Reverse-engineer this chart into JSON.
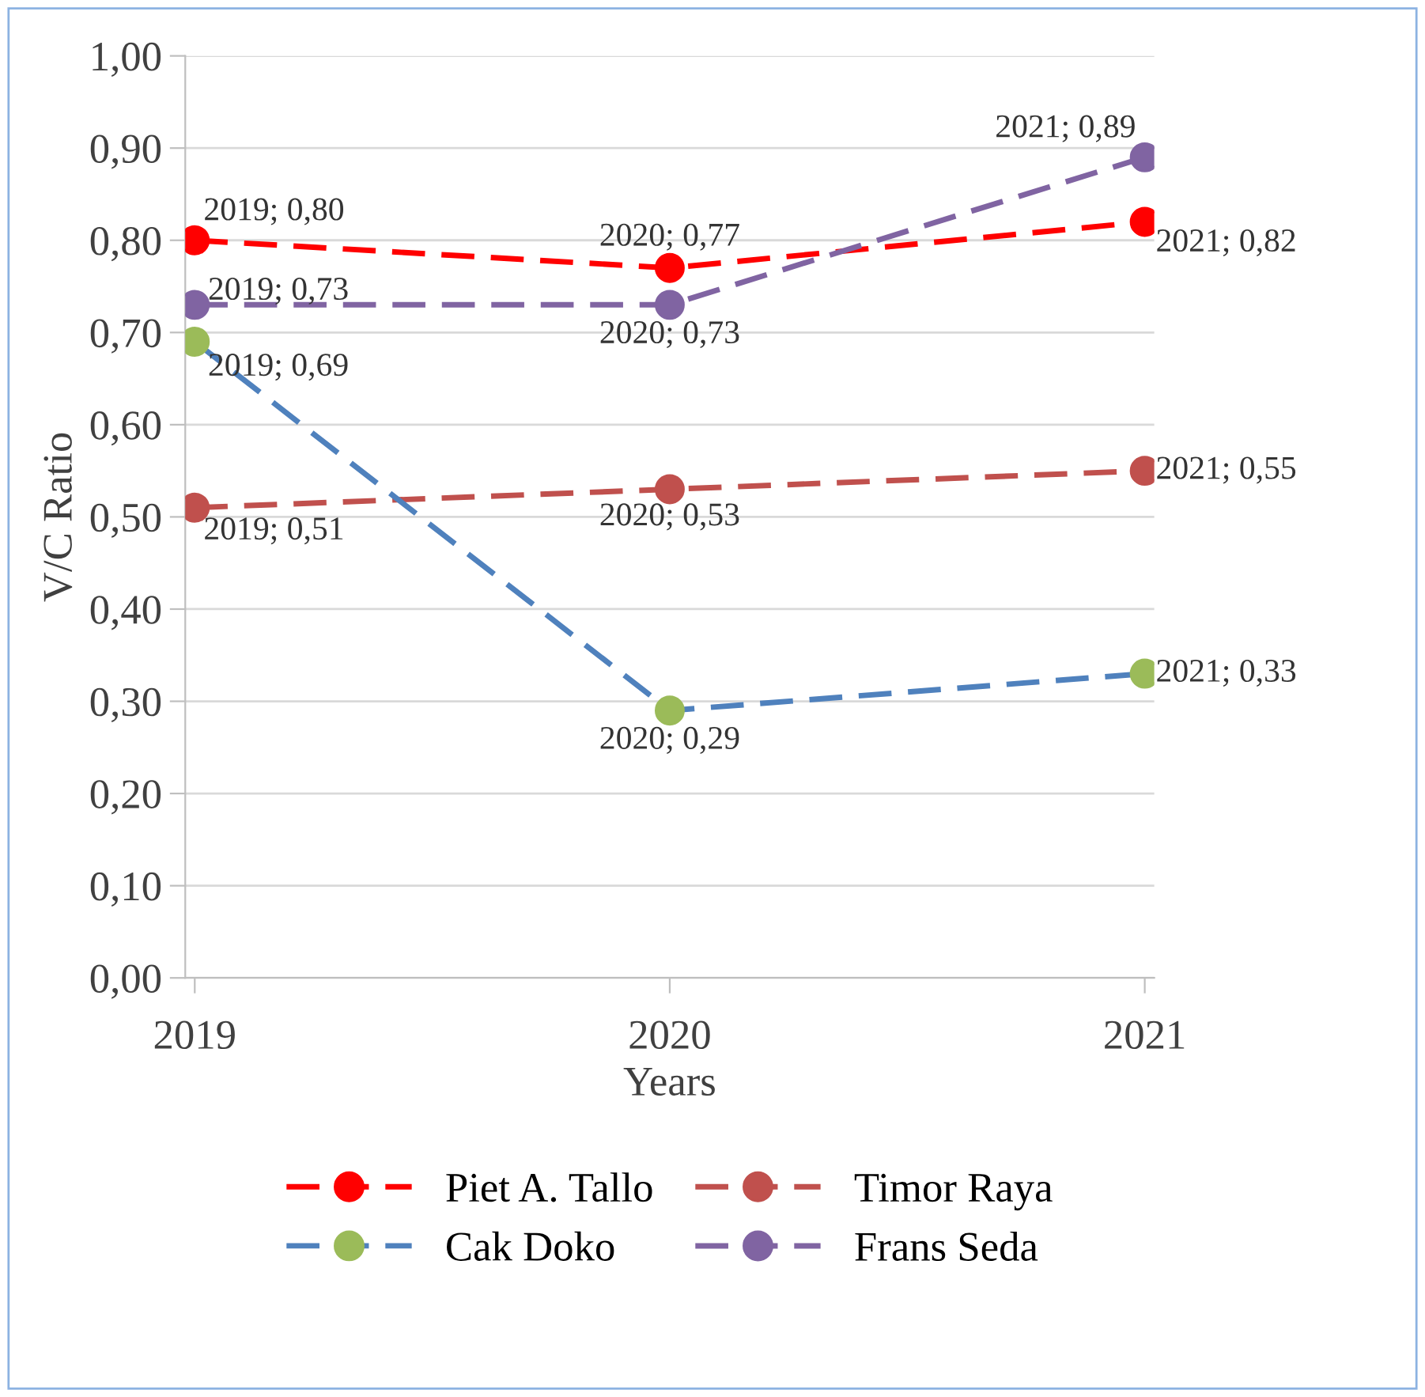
{
  "chart_data": {
    "type": "line",
    "xlabel": "Years",
    "ylabel": "V/C Ratio",
    "categories": [
      "2019",
      "2020",
      "2021"
    ],
    "series": [
      {
        "name": "Piet A. Tallo",
        "color": "#ff0000",
        "values": [
          0.8,
          0.77,
          0.82
        ],
        "value_labels": [
          "2019; 0,80",
          "2020; 0,77",
          "2021; 0,82"
        ]
      },
      {
        "name": "Timor Raya",
        "color": "#c0504d",
        "values": [
          0.51,
          0.53,
          0.55
        ],
        "value_labels": [
          "2019; 0,51",
          "2020; 0,53",
          "2021; 0,55"
        ]
      },
      {
        "name": "Cak Doko",
        "color": "#4f81bd",
        "colors": [
          "#9bbb59",
          "#9bbb59",
          "#9bbb59"
        ],
        "values": [
          0.69,
          0.29,
          0.33
        ],
        "value_labels": [
          "2019; 0,69",
          "2020; 0,29",
          "2021; 0,33"
        ]
      },
      {
        "name": "Frans Seda",
        "color": "#8064a2",
        "values": [
          0.73,
          0.73,
          0.89
        ],
        "value_labels": [
          "2019; 0,73",
          "2020; 0,73",
          "2021; 0,89"
        ]
      }
    ],
    "ylim": [
      0,
      1
    ],
    "yticks": [
      {
        "value": 0,
        "label": "0,00"
      },
      {
        "value": 0.1,
        "label": "0,10"
      },
      {
        "value": 0.2,
        "label": "0,20"
      },
      {
        "value": 0.3,
        "label": "0,30"
      },
      {
        "value": 0.4,
        "label": "0,40"
      },
      {
        "value": 0.5,
        "label": "0,50"
      },
      {
        "value": 0.6,
        "label": "0,60"
      },
      {
        "value": 0.7,
        "label": "0,70"
      },
      {
        "value": 0.8,
        "label": "0,80"
      },
      {
        "value": 0.9,
        "label": "0,90"
      },
      {
        "value": 1,
        "label": "1,00"
      }
    ],
    "grid": "y",
    "legend": "bottom",
    "marker": "circle",
    "line_style": "dashed"
  }
}
